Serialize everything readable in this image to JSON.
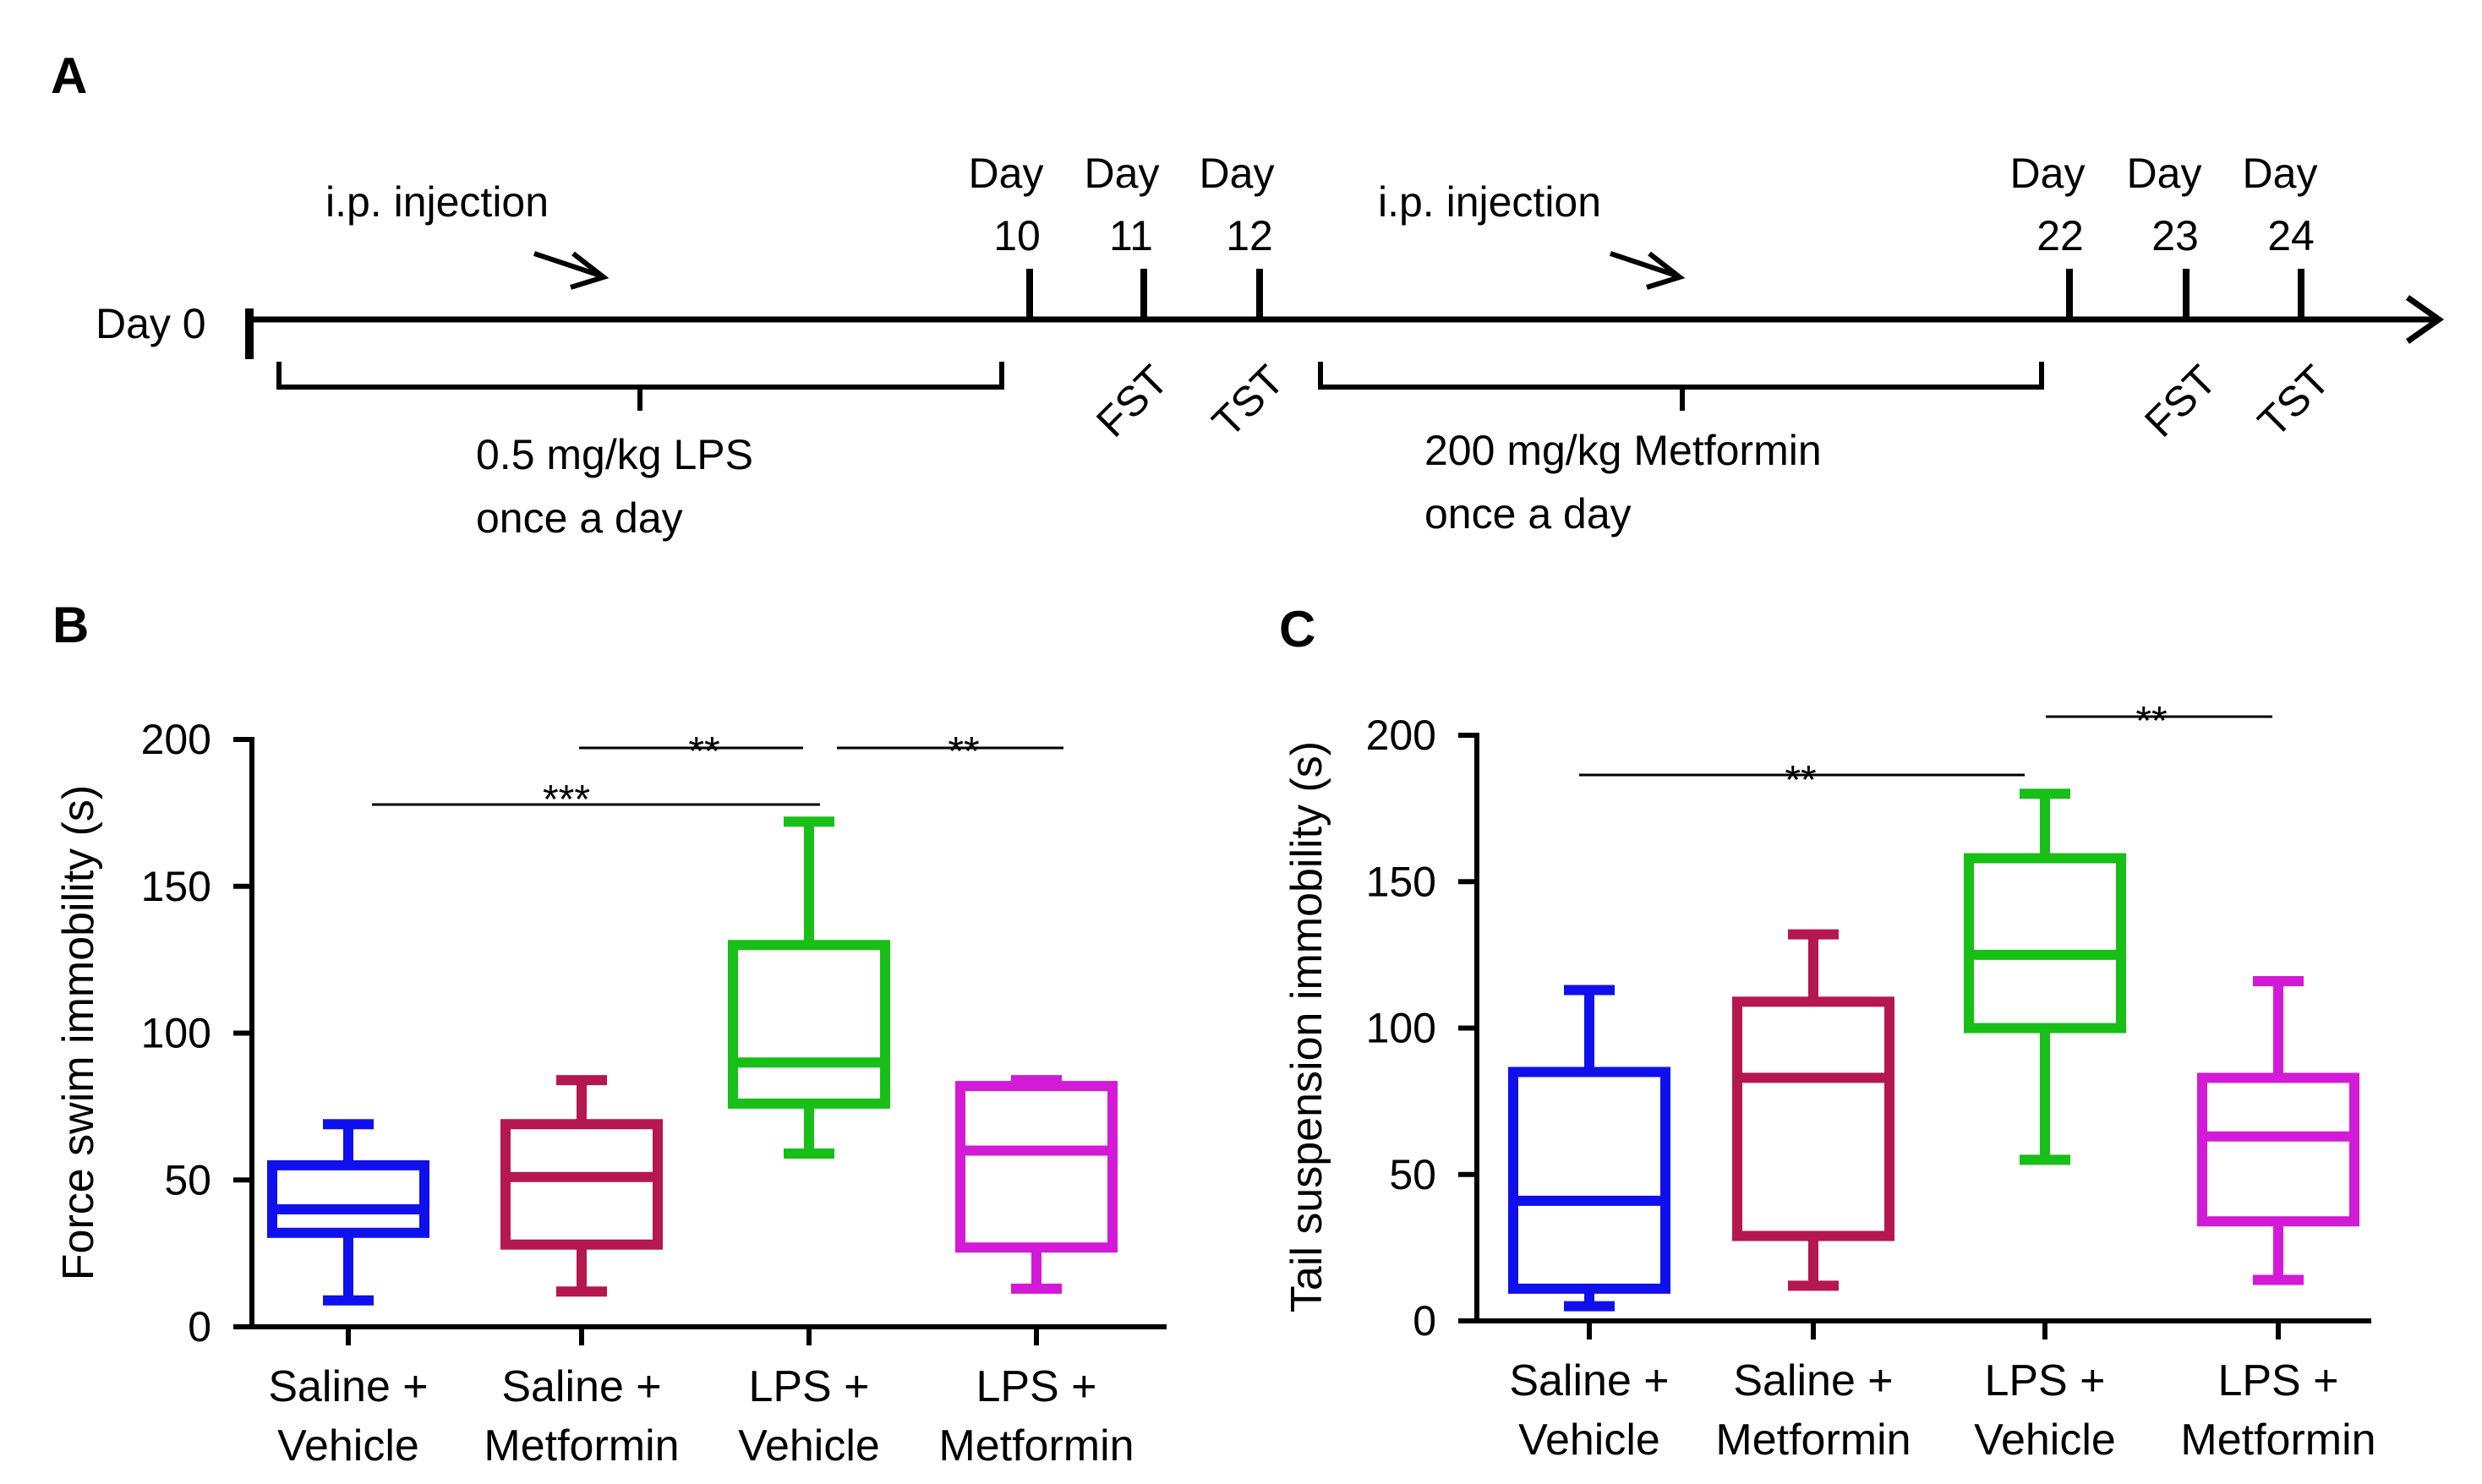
{
  "timeline": {
    "panel_label": "A",
    "start_label": "Day 0",
    "days": [
      {
        "top": "Day",
        "bottom": "10"
      },
      {
        "top": "Day",
        "bottom": "11"
      },
      {
        "top": "Day",
        "bottom": "12"
      },
      {
        "top": "Day",
        "bottom": "22"
      },
      {
        "top": "Day",
        "bottom": "23"
      },
      {
        "top": "Day",
        "bottom": "24"
      }
    ],
    "injection_label_1": "i.p. injection",
    "injection_label_2": "i.p. injection",
    "treatment_1": {
      "line1": "0.5 mg/kg LPS",
      "line2": "once a day"
    },
    "treatment_2": {
      "line1": "200 mg/kg Metformin",
      "line2": "once a day"
    },
    "tests": [
      "FST",
      "TST",
      "FST",
      "TST"
    ]
  },
  "chart_data": [
    {
      "panel": "B",
      "type": "boxplot",
      "ylabel": "Force swim immobility (s)",
      "ylim": [
        0,
        200
      ],
      "yticks": [
        0,
        50,
        100,
        150,
        200
      ],
      "categories": [
        [
          "Saline +",
          "Vehicle"
        ],
        [
          "Saline +",
          "Metformin"
        ],
        [
          "LPS +",
          "Vehicle"
        ],
        [
          "LPS +",
          "Metformin"
        ]
      ],
      "colors": [
        "#1010ee",
        "#b5174f",
        "#17bf17",
        "#d21ad7"
      ],
      "series": [
        {
          "name": "Saline + Vehicle",
          "min": 9,
          "q1": 32,
          "median": 40,
          "q3": 55,
          "max": 69
        },
        {
          "name": "Saline + Metformin",
          "min": 12,
          "q1": 28,
          "median": 51,
          "q3": 69,
          "max": 84
        },
        {
          "name": "LPS + Vehicle",
          "min": 59,
          "q1": 76,
          "median": 90,
          "q3": 130,
          "max": 172
        },
        {
          "name": "LPS + Metformin",
          "min": 13,
          "q1": 27,
          "median": 60,
          "q3": 82,
          "max": 84
        }
      ],
      "significance": [
        {
          "from": 0,
          "to": 2,
          "label": "***"
        },
        {
          "from": 1,
          "to": 2,
          "label": "**"
        },
        {
          "from": 2,
          "to": 3,
          "label": "**"
        }
      ]
    },
    {
      "panel": "C",
      "type": "boxplot",
      "ylabel": "Tail suspension  immobility (s)",
      "ylim": [
        0,
        200
      ],
      "yticks": [
        0,
        50,
        100,
        150,
        200
      ],
      "categories": [
        [
          "Saline +",
          "Vehicle"
        ],
        [
          "Saline +",
          "Metformin"
        ],
        [
          "LPS +",
          "Vehicle"
        ],
        [
          "LPS +",
          "Metformin"
        ]
      ],
      "colors": [
        "#1010ee",
        "#b5174f",
        "#17bf17",
        "#d21ad7"
      ],
      "series": [
        {
          "name": "Saline + Vehicle",
          "min": 5,
          "q1": 11,
          "median": 41,
          "q3": 85,
          "max": 113
        },
        {
          "name": "Saline + Metformin",
          "min": 12,
          "q1": 29,
          "median": 83,
          "q3": 109,
          "max": 132
        },
        {
          "name": "LPS + Vehicle",
          "min": 55,
          "q1": 100,
          "median": 125,
          "q3": 158,
          "max": 180
        },
        {
          "name": "LPS + Metformin",
          "min": 14,
          "q1": 34,
          "median": 63,
          "q3": 83,
          "max": 116
        }
      ],
      "significance": [
        {
          "from": 0,
          "to": 2,
          "label": "**"
        },
        {
          "from": 2,
          "to": 3,
          "label": "**"
        }
      ]
    }
  ]
}
